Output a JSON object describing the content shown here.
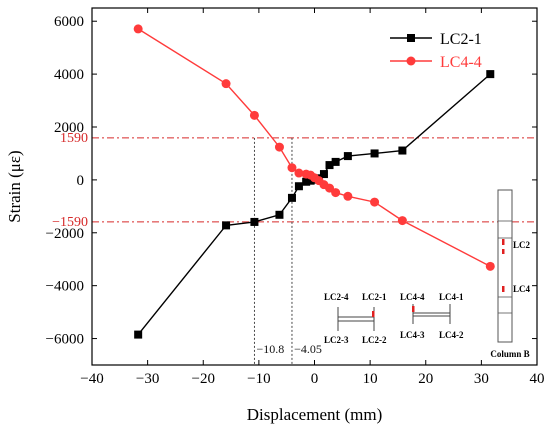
{
  "chart_data": {
    "type": "line",
    "xlabel": "Displacement (mm)",
    "ylabel": "Strain (με)",
    "xlim": [
      -40,
      40
    ],
    "ylim": [
      -7000,
      6500
    ],
    "xticks": [
      -40,
      -30,
      -20,
      -10,
      0,
      10,
      20,
      30,
      40
    ],
    "yticks": [
      -6000,
      -4000,
      -2000,
      0,
      2000,
      4000,
      6000
    ],
    "tick_labels_x": [
      "−40",
      "−30",
      "−20",
      "−10",
      "0",
      "10",
      "20",
      "30",
      "40"
    ],
    "tick_labels_y": [
      "−6000",
      "−4000",
      "−2000",
      "0",
      "2000",
      "4000",
      "6000"
    ],
    "grid": false,
    "legend_position": "top-right",
    "series": [
      {
        "name": "LC2-1",
        "color": "#000000",
        "marker": "square",
        "x": [
          -31.7,
          -15.9,
          -10.8,
          -6.3,
          -4.05,
          -2.8,
          -1.5,
          -0.7,
          0,
          0.8,
          1.7,
          2.7,
          3.8,
          6.0,
          10.8,
          15.8,
          31.6
        ],
        "y": [
          -5850,
          -1720,
          -1590,
          -1320,
          -680,
          -240,
          -70,
          -30,
          10,
          60,
          220,
          560,
          680,
          900,
          1000,
          1110,
          4000
        ]
      },
      {
        "name": "LC4-4",
        "color": "#ff3b3b",
        "marker": "circle",
        "x": [
          -31.7,
          -15.9,
          -10.8,
          -6.3,
          -4.05,
          -2.8,
          -1.5,
          -0.7,
          0,
          0.8,
          1.7,
          2.7,
          3.8,
          6.0,
          10.8,
          15.8,
          31.6
        ],
        "y": [
          5710,
          3640,
          2440,
          1240,
          460,
          260,
          220,
          180,
          80,
          -30,
          -180,
          -310,
          -480,
          -620,
          -840,
          -1540,
          -3270
        ]
      }
    ],
    "reference_lines": [
      {
        "axis": "y",
        "value": 1590,
        "label": "1590",
        "color": "#d62a2a",
        "style": "dashdot"
      },
      {
        "axis": "y",
        "value": -1590,
        "label": "−1590",
        "color": "#d62a2a",
        "style": "dashdot"
      },
      {
        "axis": "x",
        "value": -10.8,
        "label": "−10.8",
        "color": "#333333",
        "style": "dotted"
      },
      {
        "axis": "x",
        "value": -4.05,
        "label": "−4.05",
        "color": "#333333",
        "style": "dotted"
      }
    ],
    "inset": {
      "section_labels_1": {
        "top_left": "LC2-4",
        "top_right": "LC2-1",
        "bottom_left": "LC2-3",
        "bottom_right": "LC2-2"
      },
      "section_labels_2": {
        "top_left": "LC4-4",
        "top_right": "LC4-1",
        "bottom_left": "LC4-3",
        "bottom_right": "LC4-2"
      },
      "column_labels": {
        "gauge_a": "LC2",
        "gauge_b": "LC4",
        "caption": "Column B"
      }
    }
  }
}
